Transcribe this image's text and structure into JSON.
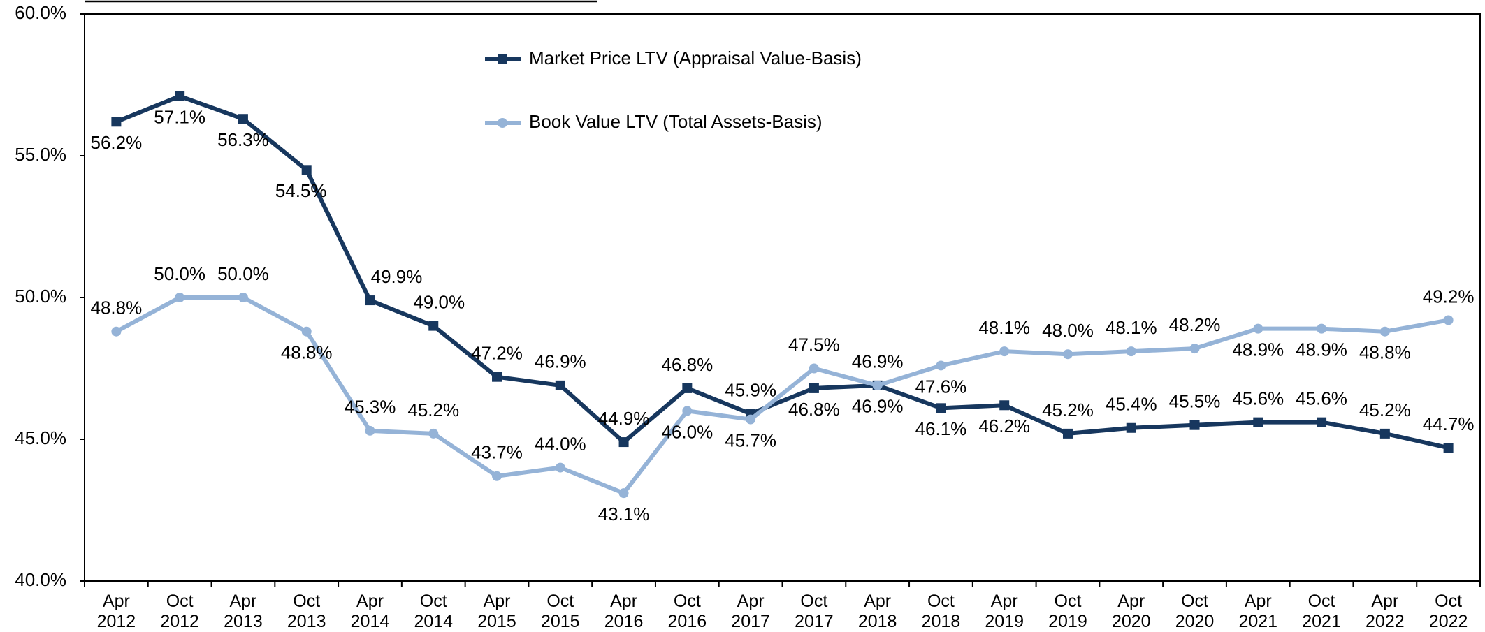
{
  "chart_data": {
    "type": "line",
    "categories": [
      "Apr 2012",
      "Oct 2012",
      "Apr 2013",
      "Oct 2013",
      "Apr 2014",
      "Oct 2014",
      "Apr 2015",
      "Oct 2015",
      "Apr 2016",
      "Oct 2016",
      "Apr 2017",
      "Oct 2017",
      "Apr 2018",
      "Oct 2018",
      "Apr 2019",
      "Oct 2019",
      "Apr 2020",
      "Oct 2020",
      "Apr 2021",
      "Oct 2021",
      "Apr 2022",
      "Oct 2022"
    ],
    "series": [
      {
        "name": "Market Price LTV (Appraisal Value-Basis)",
        "color": "#17375e",
        "marker": "square",
        "values": [
          56.2,
          57.1,
          56.3,
          54.5,
          49.9,
          49.0,
          47.2,
          46.9,
          44.9,
          46.8,
          45.9,
          46.8,
          46.9,
          46.1,
          46.2,
          45.2,
          45.4,
          45.5,
          45.6,
          45.6,
          45.2,
          44.7
        ],
        "value_labels": [
          "56.2%",
          "57.1%",
          "56.3%",
          "54.5%",
          "49.9%",
          "49.0%",
          "47.2%",
          "46.9%",
          "44.9%",
          "46.8%",
          "45.9%",
          "46.8%",
          "46.9%",
          "46.1%",
          "46.2%",
          "45.2%",
          "45.4%",
          "45.5%",
          "45.6%",
          "45.6%",
          "45.2%",
          "44.7%"
        ]
      },
      {
        "name": "Book Value LTV (Total Assets-Basis)",
        "color": "#95b3d7",
        "marker": "circle",
        "values": [
          48.8,
          50.0,
          50.0,
          48.8,
          45.3,
          45.2,
          43.7,
          44.0,
          43.1,
          46.0,
          45.7,
          47.5,
          46.9,
          47.6,
          48.1,
          48.0,
          48.1,
          48.2,
          48.9,
          48.9,
          48.8,
          49.2
        ],
        "value_labels": [
          "48.8%",
          "50.0%",
          "50.0%",
          "48.8%",
          "45.3%",
          "45.2%",
          "43.7%",
          "44.0%",
          "43.1%",
          "46.0%",
          "45.7%",
          "47.5%",
          "46.9%",
          "47.6%",
          "48.1%",
          "48.0%",
          "48.1%",
          "48.2%",
          "48.9%",
          "48.9%",
          "48.8%",
          "49.2%"
        ]
      }
    ],
    "ylim": [
      40,
      60
    ],
    "yticks": [
      {
        "value": 40,
        "label": "40.0%"
      },
      {
        "value": 45,
        "label": "45.0%"
      },
      {
        "value": 50,
        "label": "50.0%"
      },
      {
        "value": 55,
        "label": "55.0%"
      },
      {
        "value": 60,
        "label": "60.0%"
      }
    ],
    "grid": false
  }
}
